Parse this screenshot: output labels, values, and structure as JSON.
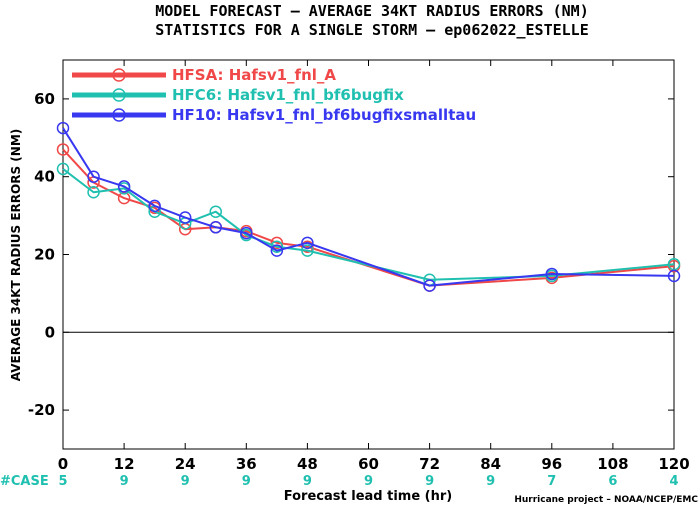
{
  "header": {
    "title_line1": "MODEL FORECAST – AVERAGE 34KT RADIUS ERRORS (NM)",
    "title_line2": "STATISTICS FOR A SINGLE STORM – ep062022_ESTELLE"
  },
  "chart_data": {
    "type": "line",
    "xlabel": "Forecast lead time (hr)",
    "ylabel": "AVERAGE 34KT RADIUS ERRORS (NM)",
    "xlim": [
      0,
      120
    ],
    "ylim": [
      -30,
      70
    ],
    "x_ticks": [
      0,
      12,
      24,
      36,
      48,
      60,
      72,
      84,
      96,
      108,
      120
    ],
    "y_ticks": [
      -20,
      0,
      20,
      40,
      60
    ],
    "zero_line": true,
    "legend_position": "top-left",
    "series": [
      {
        "name": "HFSA: Hafsv1_fnl_A",
        "color": "#f04848",
        "x": [
          0,
          6,
          12,
          18,
          24,
          30,
          36,
          42,
          48,
          72,
          96,
          120
        ],
        "y": [
          47,
          38.5,
          34.5,
          32,
          26.5,
          27,
          26,
          23,
          22,
          12,
          14,
          17
        ]
      },
      {
        "name": "HFC6: Hafsv1_fnl_bf6bugfix",
        "color": "#20c0b0",
        "x": [
          0,
          6,
          12,
          18,
          24,
          30,
          36,
          42,
          48,
          72,
          96,
          120
        ],
        "y": [
          42,
          36,
          37,
          31,
          28,
          31,
          25,
          22,
          21,
          13.5,
          14.5,
          17.5
        ]
      },
      {
        "name": "HF10: Hafsv1_fnl_bf6bugfixsmalltau",
        "color": "#3838f0",
        "x": [
          0,
          6,
          12,
          18,
          24,
          30,
          36,
          42,
          48,
          72,
          96,
          120
        ],
        "y": [
          52.5,
          40,
          37.5,
          32.5,
          29.5,
          27,
          25.5,
          21,
          23,
          12,
          15,
          14.5
        ]
      }
    ],
    "case_label": "#CASE",
    "case_counts": [
      {
        "x": 0,
        "n": "5"
      },
      {
        "x": 12,
        "n": "9"
      },
      {
        "x": 24,
        "n": "9"
      },
      {
        "x": 36,
        "n": "9"
      },
      {
        "x": 48,
        "n": "9"
      },
      {
        "x": 60,
        "n": "9"
      },
      {
        "x": 72,
        "n": "9"
      },
      {
        "x": 84,
        "n": "9"
      },
      {
        "x": 96,
        "n": "7"
      },
      {
        "x": 108,
        "n": "6"
      },
      {
        "x": 120,
        "n": "4"
      }
    ],
    "credit": "Hurricane project – NOAA/NCEP/EMC",
    "case_color": "#20c0b0"
  }
}
